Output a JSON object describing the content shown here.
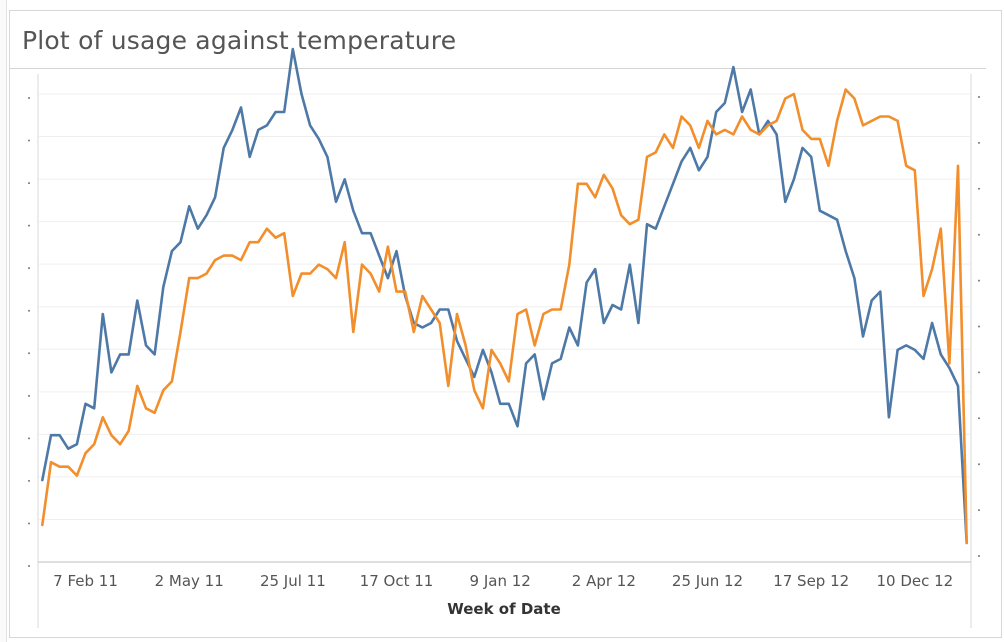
{
  "title": "Plot of usage against temperature",
  "chart_data": {
    "type": "line",
    "title": "Plot of usage against temperature",
    "xlabel": "Week of Date",
    "ylabel": "",
    "x_tick_labels": [
      "7 Feb 11",
      "2 May 11",
      "25 Jul 11",
      "17 Oct 11",
      "9 Jan 12",
      "2 Apr 12",
      "25 Jun 12",
      "17 Sep 12",
      "10 Dec 12"
    ],
    "x_tick_positions": [
      5,
      17,
      29,
      41,
      53,
      65,
      77,
      89,
      101
    ],
    "x_range": [
      -0.5,
      107.5
    ],
    "y_range": [
      0,
      100
    ],
    "left_axis_tick_count": 12,
    "right_axis_tick_count": 11,
    "grid": true,
    "legend": "none",
    "colors": {
      "series_blue": "#4e79a7",
      "series_orange": "#f28e2b"
    },
    "series": [
      {
        "color": "#4e79a7",
        "values": [
          14,
          24,
          24,
          21,
          22,
          31,
          30,
          51,
          38,
          42,
          42,
          54,
          44,
          42,
          57,
          65,
          67,
          75,
          70,
          73,
          77,
          88,
          92,
          97,
          86,
          92,
          93,
          96,
          96,
          110,
          100,
          93,
          90,
          86,
          76,
          81,
          74,
          69,
          69,
          64,
          59,
          65,
          55,
          49,
          48,
          49,
          52,
          52,
          45,
          41,
          37,
          43,
          38,
          31,
          31,
          26,
          40,
          42,
          32,
          40,
          41,
          48,
          44,
          58,
          61,
          49,
          53,
          52,
          62,
          49,
          71,
          70,
          75,
          80,
          85,
          88,
          83,
          86,
          96,
          98,
          106,
          96,
          101,
          91,
          94,
          91,
          76,
          81,
          88,
          86,
          74,
          73,
          72,
          65,
          59,
          46,
          54,
          56,
          28,
          43,
          44,
          43,
          41,
          49,
          42,
          39,
          35,
          0
        ]
      },
      {
        "color": "#f28e2b",
        "values": [
          4,
          18,
          17,
          17,
          15,
          20,
          22,
          28,
          24,
          22,
          25,
          35,
          30,
          29,
          34,
          36,
          47,
          59,
          59,
          60,
          63,
          64,
          64,
          63,
          67,
          67,
          70,
          68,
          69,
          55,
          60,
          60,
          62,
          61,
          59,
          67,
          47,
          62,
          60,
          56,
          66,
          56,
          56,
          47,
          55,
          52,
          49,
          35,
          51,
          44,
          34,
          30,
          43,
          40,
          36,
          51,
          52,
          44,
          51,
          52,
          52,
          62,
          80,
          80,
          77,
          82,
          79,
          73,
          71,
          72,
          86,
          87,
          91,
          88,
          95,
          93,
          88,
          94,
          91,
          92,
          91,
          95,
          92,
          91,
          93,
          94,
          99,
          100,
          92,
          90,
          90,
          84,
          94,
          101,
          99,
          93,
          94,
          95,
          95,
          94,
          84,
          83,
          55,
          61,
          70,
          40,
          84,
          0
        ]
      }
    ]
  }
}
